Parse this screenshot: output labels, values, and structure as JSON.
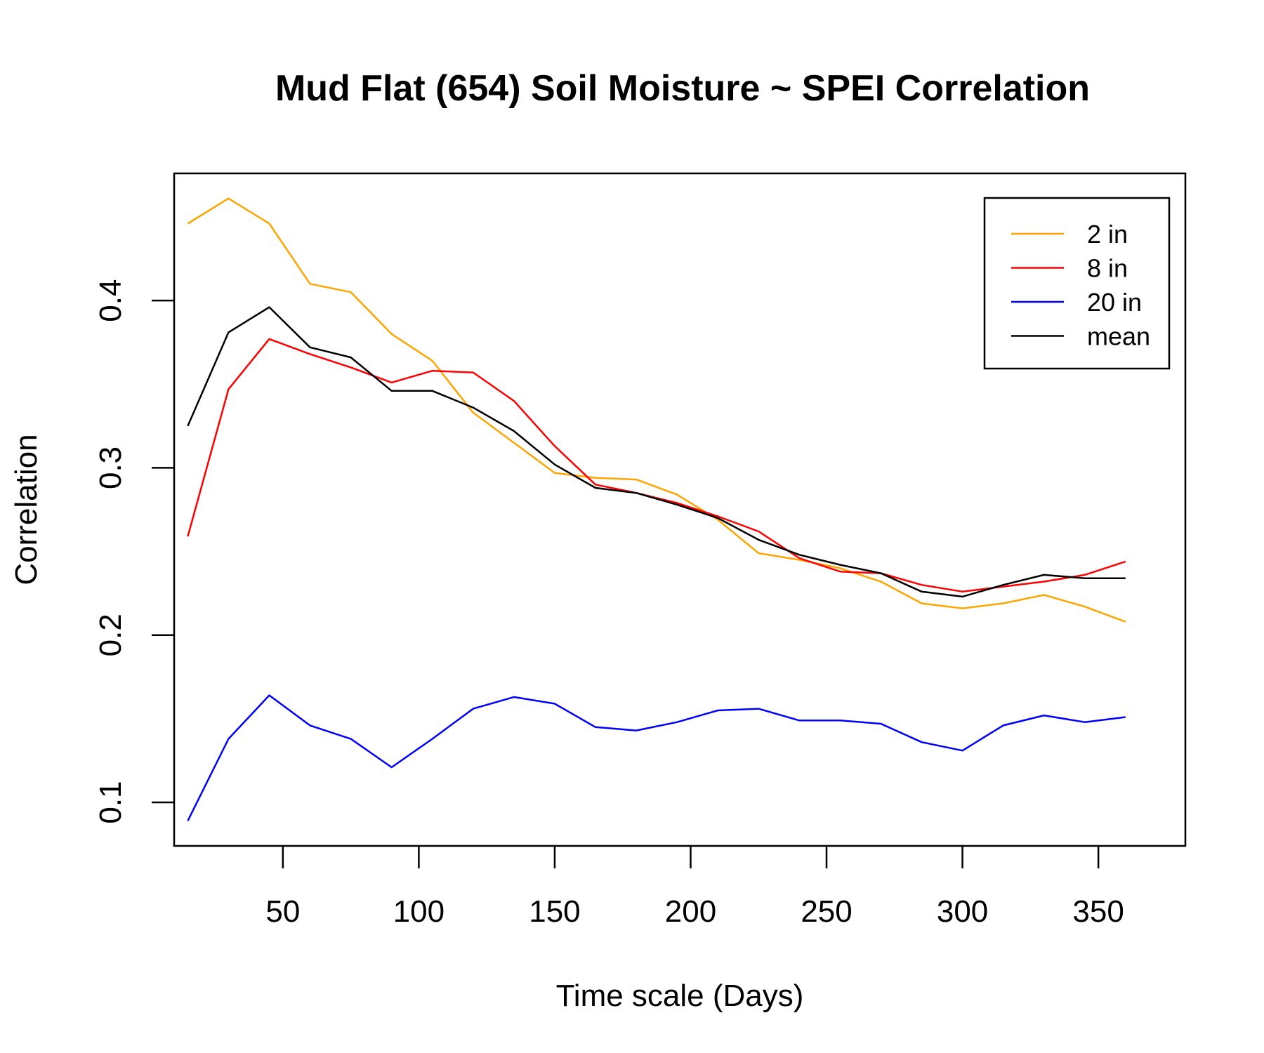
{
  "chart_data": {
    "type": "line",
    "title": "Mud Flat (654) Soil Moisture ~ SPEI Correlation",
    "xlabel": "Time scale (Days)",
    "ylabel": "Correlation",
    "xlim": [
      10,
      382
    ],
    "ylim": [
      0.074,
      0.476
    ],
    "xticks": [
      50,
      100,
      150,
      200,
      250,
      300,
      350
    ],
    "yticks": [
      0.1,
      0.2,
      0.3,
      0.4
    ],
    "ytick_labels": [
      "0.1",
      "0.2",
      "0.3",
      "0.4"
    ],
    "grid": false,
    "legend_position": "top-right",
    "x": [
      15,
      30,
      45,
      60,
      75,
      90,
      105,
      120,
      135,
      150,
      165,
      180,
      195,
      210,
      225,
      240,
      255,
      270,
      285,
      300,
      315,
      330,
      345,
      360
    ],
    "series": [
      {
        "name": "2 in",
        "color": "#FFA500",
        "values": [
          0.446,
          0.461,
          0.446,
          0.41,
          0.405,
          0.38,
          0.364,
          0.333,
          0.315,
          0.297,
          0.294,
          0.293,
          0.284,
          0.269,
          0.249,
          0.245,
          0.24,
          0.232,
          0.219,
          0.216,
          0.219,
          0.224,
          0.217,
          0.208
        ]
      },
      {
        "name": "8 in",
        "color": "#FF0000",
        "values": [
          0.259,
          0.347,
          0.377,
          0.368,
          0.36,
          0.351,
          0.358,
          0.357,
          0.34,
          0.313,
          0.29,
          0.285,
          0.279,
          0.271,
          0.262,
          0.246,
          0.238,
          0.237,
          0.23,
          0.226,
          0.229,
          0.232,
          0.236,
          0.244
        ]
      },
      {
        "name": "20 in",
        "color": "#0000FF",
        "values": [
          0.089,
          0.138,
          0.164,
          0.146,
          0.138,
          0.121,
          0.138,
          0.156,
          0.163,
          0.159,
          0.145,
          0.143,
          0.148,
          0.155,
          0.156,
          0.149,
          0.149,
          0.147,
          0.136,
          0.131,
          0.146,
          0.152,
          0.148,
          0.151
        ]
      },
      {
        "name": "mean",
        "color": "#000000",
        "values": [
          0.325,
          0.381,
          0.396,
          0.372,
          0.366,
          0.346,
          0.346,
          0.336,
          0.322,
          0.302,
          0.288,
          0.285,
          0.278,
          0.27,
          0.257,
          0.248,
          0.242,
          0.237,
          0.226,
          0.223,
          0.23,
          0.236,
          0.234,
          0.234
        ]
      }
    ]
  }
}
